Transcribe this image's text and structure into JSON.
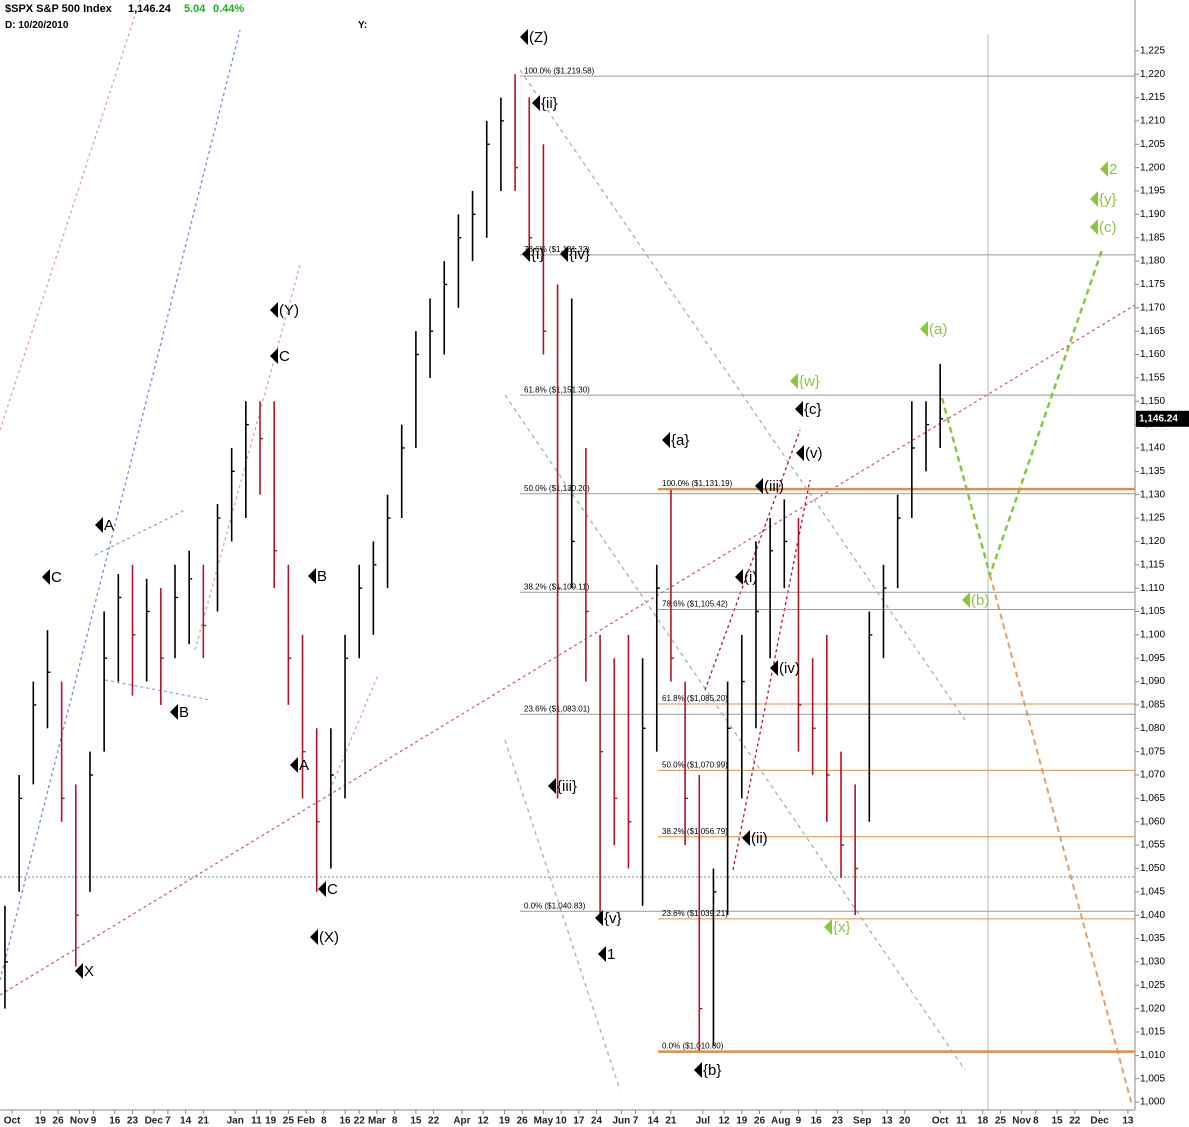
{
  "chart_data": {
    "type": "ohlc",
    "title": "$SPX S&P 500 Index",
    "last_price": "1,146.24",
    "change": "5.04",
    "change_pct": "0.44%",
    "date_label": "D: 10/20/2010",
    "y_label": "Y:",
    "up_color": "#000000",
    "down_color": "#b0142a",
    "x": [
      0,
      4,
      8,
      12,
      16,
      20,
      24,
      28,
      32,
      36,
      40,
      44,
      48,
      52,
      56,
      60,
      64,
      68,
      72,
      76,
      80,
      84,
      88,
      92,
      96,
      100,
      104,
      108,
      112,
      116,
      120,
      124,
      128,
      132,
      136,
      140,
      144,
      148,
      152,
      156,
      160,
      164,
      168,
      172,
      176,
      180,
      184,
      188,
      192,
      196,
      200,
      204,
      208,
      212,
      216,
      220,
      224,
      228,
      232,
      236,
      240,
      244,
      248,
      252,
      256,
      260,
      264
    ],
    "high": [
      1042,
      1070,
      1090,
      1101,
      1090,
      1068,
      1075,
      1105,
      1113,
      1115,
      1112,
      1110,
      1115,
      1118,
      1115,
      1128,
      1140,
      1150,
      1150,
      1150,
      1115,
      1100,
      1080,
      1080,
      1100,
      1115,
      1120,
      1130,
      1145,
      1165,
      1172,
      1180,
      1190,
      1195,
      1210,
      1215,
      1220,
      1215,
      1205,
      1175,
      1172,
      1140,
      1100,
      1095,
      1100,
      1095,
      1115,
      1131,
      1090,
      1070,
      1050,
      1090,
      1100,
      1120,
      1125,
      1129,
      1125,
      1095,
      1100,
      1075,
      1068,
      1105,
      1115,
      1130,
      1150,
      1150,
      1158
    ],
    "low": [
      1020,
      1045,
      1068,
      1080,
      1060,
      1029,
      1045,
      1075,
      1090,
      1087,
      1090,
      1085,
      1095,
      1098,
      1095,
      1105,
      1120,
      1125,
      1130,
      1110,
      1085,
      1065,
      1045,
      1050,
      1065,
      1095,
      1100,
      1110,
      1125,
      1140,
      1155,
      1160,
      1170,
      1180,
      1185,
      1195,
      1195,
      1180,
      1160,
      1065,
      1110,
      1090,
      1040,
      1055,
      1050,
      1042,
      1075,
      1090,
      1055,
      1011,
      1012,
      1040,
      1065,
      1080,
      1095,
      1110,
      1075,
      1070,
      1060,
      1048,
      1040,
      1060,
      1095,
      1110,
      1125,
      1135,
      1140
    ],
    "close": [
      1030,
      1065,
      1085,
      1092,
      1065,
      1040,
      1070,
      1095,
      1108,
      1100,
      1105,
      1095,
      1108,
      1112,
      1102,
      1125,
      1135,
      1145,
      1142,
      1118,
      1095,
      1075,
      1060,
      1070,
      1095,
      1110,
      1115,
      1125,
      1140,
      1160,
      1165,
      1175,
      1185,
      1190,
      1205,
      1210,
      1200,
      1185,
      1165,
      1110,
      1120,
      1105,
      1075,
      1065,
      1060,
      1080,
      1110,
      1095,
      1065,
      1020,
      1045,
      1080,
      1090,
      1105,
      1118,
      1120,
      1085,
      1080,
      1070,
      1055,
      1050,
      1100,
      1110,
      1125,
      1140,
      1145,
      1146.24
    ],
    "xlim": [
      -1.4,
      319
    ],
    "ylim": [
      998.3,
      1231.6
    ],
    "xticks": [
      {
        "value": 2,
        "label": "Oct"
      },
      {
        "value": 10,
        "label": "19"
      },
      {
        "value": 15,
        "label": "26"
      },
      {
        "value": 21,
        "label": "Nov"
      },
      {
        "value": 25,
        "label": "9"
      },
      {
        "value": 31,
        "label": "16"
      },
      {
        "value": 36,
        "label": "23"
      },
      {
        "value": 42,
        "label": "Dec"
      },
      {
        "value": 46,
        "label": "7"
      },
      {
        "value": 51,
        "label": "14"
      },
      {
        "value": 56,
        "label": "21"
      },
      {
        "value": 65,
        "label": "Jan"
      },
      {
        "value": 71,
        "label": "11"
      },
      {
        "value": 75,
        "label": "19"
      },
      {
        "value": 80,
        "label": "25"
      },
      {
        "value": 85,
        "label": "Feb"
      },
      {
        "value": 90,
        "label": "8"
      },
      {
        "value": 96,
        "label": "16"
      },
      {
        "value": 100,
        "label": "22"
      },
      {
        "value": 105,
        "label": "Mar"
      },
      {
        "value": 110,
        "label": "8"
      },
      {
        "value": 116,
        "label": "15"
      },
      {
        "value": 121,
        "label": "22"
      },
      {
        "value": 129,
        "label": "Apr"
      },
      {
        "value": 135,
        "label": "12"
      },
      {
        "value": 141,
        "label": "19"
      },
      {
        "value": 146,
        "label": "26"
      },
      {
        "value": 152,
        "label": "May"
      },
      {
        "value": 157,
        "label": "10"
      },
      {
        "value": 162,
        "label": "17"
      },
      {
        "value": 167,
        "label": "24"
      },
      {
        "value": 174,
        "label": "Jun"
      },
      {
        "value": 178,
        "label": "7"
      },
      {
        "value": 183,
        "label": "14"
      },
      {
        "value": 188,
        "label": "21"
      },
      {
        "value": 197,
        "label": "Jul"
      },
      {
        "value": 203,
        "label": "12"
      },
      {
        "value": 208,
        "label": "19"
      },
      {
        "value": 213,
        "label": "26"
      },
      {
        "value": 219,
        "label": "Aug"
      },
      {
        "value": 224,
        "label": "9"
      },
      {
        "value": 229,
        "label": "16"
      },
      {
        "value": 235,
        "label": "23"
      },
      {
        "value": 242,
        "label": "Sep"
      },
      {
        "value": 249,
        "label": "13"
      },
      {
        "value": 254,
        "label": "20"
      },
      {
        "value": 264,
        "label": "Oct"
      },
      {
        "value": 270,
        "label": "11"
      },
      {
        "value": 276,
        "label": "18"
      },
      {
        "value": 281,
        "label": "25"
      },
      {
        "value": 287,
        "label": "Nov"
      },
      {
        "value": 291,
        "label": "8"
      },
      {
        "value": 297,
        "label": "15"
      },
      {
        "value": 302,
        "label": "22"
      },
      {
        "value": 309,
        "label": "Dec"
      },
      {
        "value": 317,
        "label": "13"
      }
    ],
    "yticks": [
      {
        "value": 1000,
        "label": "1,000"
      },
      {
        "value": 1005,
        "label": "1,005"
      },
      {
        "value": 1010,
        "label": "1,010"
      },
      {
        "value": 1015,
        "label": "1,015"
      },
      {
        "value": 1020,
        "label": "1,020"
      },
      {
        "value": 1025,
        "label": "1,025"
      },
      {
        "value": 1030,
        "label": "1,030"
      },
      {
        "value": 1035,
        "label": "1,035"
      },
      {
        "value": 1040,
        "label": "1,040"
      },
      {
        "value": 1045,
        "label": "1,045"
      },
      {
        "value": 1050,
        "label": "1,050"
      },
      {
        "value": 1055,
        "label": "1,055"
      },
      {
        "value": 1060,
        "label": "1,060"
      },
      {
        "value": 1065,
        "label": "1,065"
      },
      {
        "value": 1070,
        "label": "1,070"
      },
      {
        "value": 1075,
        "label": "1,075"
      },
      {
        "value": 1080,
        "label": "1,080"
      },
      {
        "value": 1085,
        "label": "1,085"
      },
      {
        "value": 1090,
        "label": "1,090"
      },
      {
        "value": 1095,
        "label": "1,095"
      },
      {
        "value": 1100,
        "label": "1,100"
      },
      {
        "value": 1105,
        "label": "1,105"
      },
      {
        "value": 1110,
        "label": "1,110"
      },
      {
        "value": 1115,
        "label": "1,115"
      },
      {
        "value": 1120,
        "label": "1,120"
      },
      {
        "value": 1125,
        "label": "1,125"
      },
      {
        "value": 1130,
        "label": "1,130"
      },
      {
        "value": 1135,
        "label": "1,135"
      },
      {
        "value": 1140,
        "label": "1,140"
      },
      {
        "value": 1145,
        "label": "1,145"
      },
      {
        "value": 1150,
        "label": "1,150"
      },
      {
        "value": 1155,
        "label": "1,155"
      },
      {
        "value": 1160,
        "label": "1,160"
      },
      {
        "value": 1165,
        "label": "1,165"
      },
      {
        "value": 1170,
        "label": "1,170"
      },
      {
        "value": 1175,
        "label": "1,175"
      },
      {
        "value": 1180,
        "label": "1,180"
      },
      {
        "value": 1185,
        "label": "1,185"
      },
      {
        "value": 1190,
        "label": "1,190"
      },
      {
        "value": 1195,
        "label": "1,195"
      },
      {
        "value": 1200,
        "label": "1,200"
      },
      {
        "value": 1205,
        "label": "1,205"
      },
      {
        "value": 1210,
        "label": "1,210"
      },
      {
        "value": 1215,
        "label": "1,215"
      },
      {
        "value": 1220,
        "label": "1,220"
      },
      {
        "value": 1225,
        "label": "1,225"
      }
    ],
    "fib_sets": [
      {
        "color": "#999999",
        "levels": [
          {
            "value": 1219.58,
            "label": "100.0%  ($1,219.58)"
          },
          {
            "value": 1181.32,
            "label": "78.6%  ($1,181.32)"
          },
          {
            "value": 1151.3,
            "label": "61.8%  ($1,151.30)"
          },
          {
            "value": 1130.2,
            "label": "50.0%  ($1,130.20)"
          },
          {
            "value": 1109.11,
            "label": "38.2%  ($1,109.11)"
          },
          {
            "value": 1083.01,
            "label": "23.6%  ($1,083.01)"
          },
          {
            "value": 1040.83,
            "label": "0.0%  ($1,040.83)"
          }
        ]
      },
      {
        "color": "#d9904a",
        "levels": [
          {
            "value": 1131.19,
            "label": "100.0%  ($1,131.19)"
          },
          {
            "value": 1105.42,
            "label": "78.6%  ($1,105.42)"
          },
          {
            "value": 1085.2,
            "label": "61.8%  ($1,085.20)"
          },
          {
            "value": 1070.99,
            "label": "50.0%  ($1,070.99)"
          },
          {
            "value": 1056.79,
            "label": "38.2%  ($1,056.79)"
          },
          {
            "value": 1039.21,
            "label": "23.6%  ($1,039.21)"
          },
          {
            "value": 1010.8,
            "label": "0.0%  ($1,010.80)"
          }
        ]
      }
    ],
    "annotations": [
      {
        "text": "C",
        "color": "#000000"
      },
      {
        "text": "A",
        "color": "#000000"
      },
      {
        "text": "B",
        "color": "#000000"
      },
      {
        "text": "(Y)",
        "color": "#000000"
      },
      {
        "text": "C",
        "color": "#000000"
      },
      {
        "text": "B",
        "color": "#000000"
      },
      {
        "text": "A",
        "color": "#000000"
      },
      {
        "text": "C",
        "color": "#000000"
      },
      {
        "text": "(X)",
        "color": "#000000"
      },
      {
        "text": "X",
        "color": "#000000"
      },
      {
        "text": "(Z)",
        "color": "#000000"
      },
      {
        "text": "{ii}",
        "color": "#000000"
      },
      {
        "text": "{i}",
        "color": "#000000"
      },
      {
        "text": "{iv}",
        "color": "#000000"
      },
      {
        "text": "{iii}",
        "color": "#000000"
      },
      {
        "text": "{v}",
        "color": "#000000"
      },
      {
        "text": "1",
        "color": "#000000"
      },
      {
        "text": "{a}",
        "color": "#000000"
      },
      {
        "text": "{b}",
        "color": "#000000"
      },
      {
        "text": "{c}",
        "color": "#000000"
      },
      {
        "text": "{w}",
        "color": "#8cc63f"
      },
      {
        "text": "(v)",
        "color": "#000000"
      },
      {
        "text": "(iii)",
        "color": "#000000"
      },
      {
        "text": "(i)",
        "color": "#000000"
      },
      {
        "text": "(iv)",
        "color": "#000000"
      },
      {
        "text": "(ii)",
        "color": "#000000"
      },
      {
        "text": "{x}",
        "color": "#8cc63f"
      },
      {
        "text": "(a)",
        "color": "#8cc63f"
      },
      {
        "text": "(b)",
        "color": "#8cc63f"
      },
      {
        "text": "2",
        "color": "#8cc63f"
      },
      {
        "text": "{y}",
        "color": "#8cc63f"
      },
      {
        "text": "(c)",
        "color": "#8cc63f"
      }
    ]
  }
}
